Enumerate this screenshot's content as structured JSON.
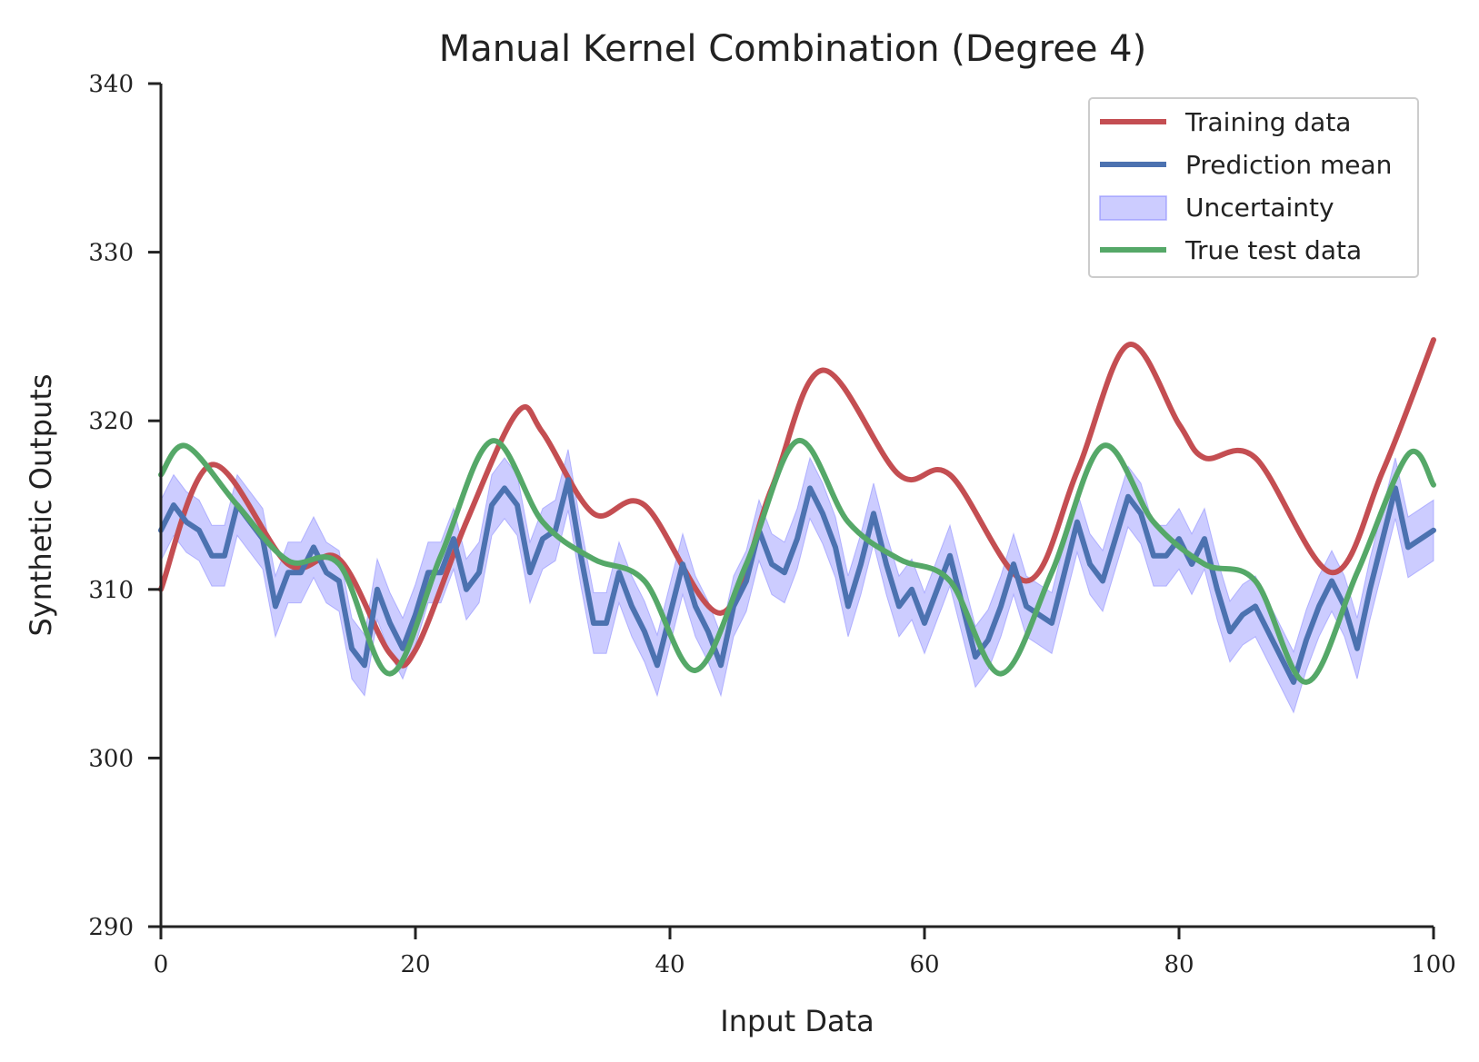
{
  "chart_data": {
    "type": "line",
    "title": "Manual Kernel Combination (Degree 4)",
    "xlabel": "Input Data",
    "ylabel": "Synthetic Outputs",
    "xlim": [
      0,
      100
    ],
    "ylim": [
      290,
      340
    ],
    "xticks": [
      "0",
      "20",
      "40",
      "60",
      "80",
      "100"
    ],
    "yticks": [
      "290",
      "300",
      "310",
      "320",
      "330",
      "340"
    ],
    "grid": false,
    "legend_position": "top-right",
    "legend": [
      {
        "label": "Training data",
        "kind": "line",
        "color": "#c44e52"
      },
      {
        "label": "Prediction mean",
        "kind": "line",
        "color": "#4c72b0"
      },
      {
        "label": "Uncertainty",
        "kind": "fill",
        "color": "#8080ff"
      },
      {
        "label": "True test data",
        "kind": "line",
        "color": "#55a868"
      }
    ],
    "series": [
      {
        "name": "Training data",
        "color": "#c44e52",
        "x": [
          0,
          4,
          10,
          14,
          18,
          20,
          24,
          28,
          30,
          34,
          38,
          44,
          48,
          52,
          58,
          62,
          68,
          72,
          76,
          80,
          82,
          86,
          92,
          96,
          100
        ],
        "y": [
          310,
          317.4,
          311.5,
          311.8,
          306.2,
          306.4,
          314,
          320.5,
          319.3,
          314.5,
          315,
          308.6,
          316,
          323,
          316.8,
          316.8,
          310.5,
          317,
          324.5,
          319.8,
          317.8,
          317.8,
          311,
          317,
          324.8
        ]
      },
      {
        "name": "True test data",
        "color": "#55a868",
        "x": [
          0,
          2,
          6,
          10,
          14,
          18,
          22,
          26,
          30,
          34,
          38,
          42,
          46,
          50,
          54,
          58,
          62,
          66,
          70,
          74,
          78,
          82,
          86,
          90,
          94,
          98,
          100
        ],
        "y": [
          316.8,
          318.5,
          315,
          311.7,
          311.5,
          305,
          312,
          318.8,
          314,
          311.8,
          310.5,
          305.2,
          311.5,
          318.8,
          314,
          311.8,
          310.5,
          305,
          311,
          318.5,
          314,
          311.5,
          310.5,
          304.5,
          311,
          318,
          316.2
        ]
      },
      {
        "name": "Prediction mean",
        "color": "#4c72b0",
        "band": 1.8,
        "x": [
          0,
          1,
          2,
          3,
          4,
          5,
          6,
          7,
          8,
          9,
          10,
          11,
          12,
          13,
          14,
          15,
          16,
          17,
          18,
          19,
          20,
          21,
          22,
          23,
          24,
          25,
          26,
          27,
          28,
          29,
          30,
          31,
          32,
          33,
          34,
          35,
          36,
          37,
          38,
          39,
          40,
          41,
          42,
          43,
          44,
          45,
          46,
          47,
          48,
          49,
          50,
          51,
          52,
          53,
          54,
          55,
          56,
          57,
          58,
          59,
          60,
          61,
          62,
          63,
          64,
          65,
          66,
          67,
          68,
          69,
          70,
          71,
          72,
          73,
          74,
          75,
          76,
          77,
          78,
          79,
          80,
          81,
          82,
          83,
          84,
          85,
          86,
          87,
          88,
          89,
          90,
          91,
          92,
          93,
          94,
          95,
          96,
          97,
          98,
          99,
          100
        ],
        "y": [
          313.5,
          315,
          314,
          313.5,
          312,
          312,
          315,
          314,
          313,
          309,
          311,
          311,
          312.5,
          311,
          310.5,
          306.5,
          305.5,
          310,
          308,
          306.5,
          308.5,
          311,
          311,
          313,
          310,
          311,
          315,
          316,
          315,
          311,
          313,
          313.5,
          316.5,
          312,
          308,
          308,
          311,
          309,
          307.5,
          305.5,
          308.5,
          311.5,
          309,
          307.5,
          305.5,
          309,
          310.5,
          313.5,
          311.5,
          311,
          313,
          316,
          314.5,
          312.5,
          309,
          311.5,
          314.5,
          311.5,
          309,
          310,
          308,
          310,
          312,
          309,
          306,
          307,
          309,
          311.5,
          309,
          308.5,
          308,
          311,
          314,
          311.5,
          310.5,
          313,
          315.5,
          314.5,
          312,
          312,
          313,
          311.5,
          313,
          310,
          307.5,
          308.5,
          309,
          307.5,
          306,
          304.5,
          307,
          309,
          310.5,
          309,
          306.5,
          310,
          313,
          316,
          312.5,
          313,
          313.5
        ]
      }
    ]
  }
}
